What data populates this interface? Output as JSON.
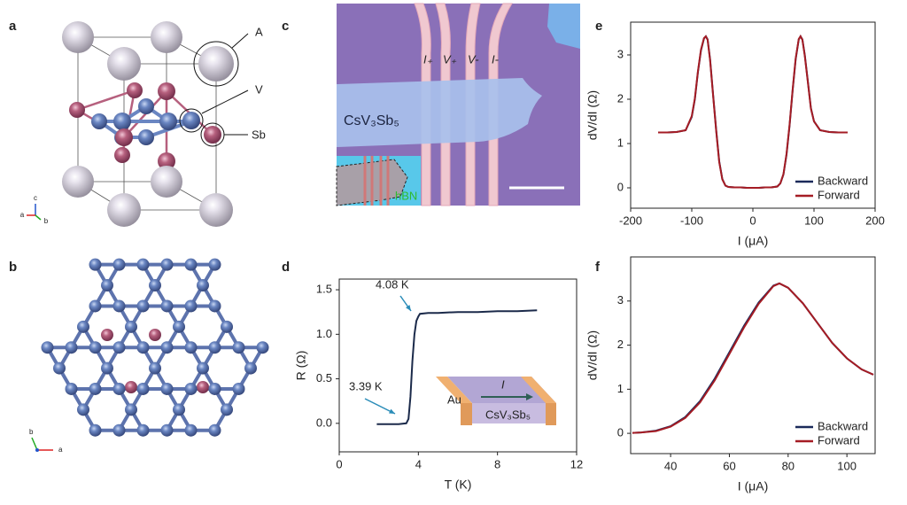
{
  "panel_labels": [
    "a",
    "b",
    "c",
    "d",
    "e",
    "f"
  ],
  "structure_a": {
    "labels": [
      "A",
      "V",
      "Sb"
    ],
    "axes": [
      "c",
      "a",
      "b"
    ]
  },
  "structure_b": {
    "axes": [
      "b",
      "a"
    ]
  },
  "micrograph_c": {
    "electrode_labels": [
      "I₊",
      "V₊",
      "V-",
      "I-"
    ],
    "flake_label": "CsV₃Sb₅",
    "inset_label": "hBN"
  },
  "chart_data": [
    {
      "type": "line",
      "xlabel": "T (K)",
      "ylabel": "R (Ω)",
      "xlim": [
        0,
        12
      ],
      "xticks": [
        0,
        4,
        8,
        12
      ],
      "ylim": [
        -0.32,
        1.62
      ],
      "yticks": [
        {
          "value": 0,
          "label": "0.0"
        },
        0.5,
        {
          "value": 1,
          "label": "1.0"
        },
        1.5
      ],
      "x": [
        1.9,
        2.5,
        3.0,
        3.39,
        3.5,
        3.6,
        3.7,
        3.8,
        3.9,
        4.0,
        4.08,
        4.5,
        5,
        6,
        7,
        8,
        9,
        10
      ],
      "series": [
        {
          "color": "#1b2a4a",
          "values": [
            -0.01,
            -0.01,
            -0.01,
            0.0,
            0.05,
            0.3,
            0.7,
            1.0,
            1.15,
            1.2,
            1.23,
            1.24,
            1.24,
            1.25,
            1.25,
            1.26,
            1.26,
            1.27
          ]
        }
      ],
      "annotations": [
        "4.08 K",
        "3.39 K"
      ],
      "inset_labels": [
        "Au",
        "I",
        "CsV₃Sb₅"
      ]
    },
    {
      "type": "line",
      "xlabel": "I (μA)",
      "ylabel": "dV/dI (Ω)",
      "xlim": [
        -200,
        200
      ],
      "xticks": [
        -200,
        -100,
        0,
        100,
        200
      ],
      "ylim": [
        -0.46,
        3.74
      ],
      "yticks": [
        0,
        1,
        2,
        3
      ],
      "legend": "lower right",
      "x": [
        -155,
        -140,
        -125,
        -110,
        -100,
        -95,
        -90,
        -85,
        -80,
        -77,
        -74,
        -70,
        -65,
        -60,
        -55,
        -50,
        -45,
        -40,
        -30,
        -20,
        -10,
        0,
        10,
        20,
        30,
        40,
        45,
        50,
        55,
        60,
        65,
        70,
        75,
        78,
        81,
        85,
        90,
        95,
        100,
        110,
        125,
        140,
        155
      ],
      "series": [
        {
          "name": "Backward",
          "color": "#1b2a5a",
          "values": [
            1.25,
            1.25,
            1.26,
            1.3,
            1.6,
            2.0,
            2.6,
            3.1,
            3.37,
            3.42,
            3.35,
            2.9,
            2.1,
            1.3,
            0.6,
            0.2,
            0.05,
            0.02,
            0.01,
            0.01,
            0.0,
            0.0,
            0.0,
            0.01,
            0.01,
            0.03,
            0.1,
            0.3,
            0.75,
            1.4,
            2.2,
            2.9,
            3.35,
            3.42,
            3.35,
            3.0,
            2.4,
            1.8,
            1.5,
            1.3,
            1.26,
            1.25,
            1.25
          ]
        },
        {
          "name": "Forward",
          "color": "#a51c24",
          "values": [
            1.25,
            1.25,
            1.26,
            1.3,
            1.62,
            2.02,
            2.62,
            3.12,
            3.38,
            3.42,
            3.34,
            2.88,
            2.08,
            1.28,
            0.58,
            0.19,
            0.05,
            0.02,
            0.01,
            0.01,
            0.0,
            0.0,
            0.0,
            0.01,
            0.01,
            0.03,
            0.1,
            0.31,
            0.77,
            1.42,
            2.22,
            2.92,
            3.36,
            3.42,
            3.34,
            2.98,
            2.38,
            1.79,
            1.5,
            1.3,
            1.26,
            1.25,
            1.25
          ]
        }
      ]
    },
    {
      "type": "line",
      "xlabel": "I (μA)",
      "ylabel": "dV/dI (Ω)",
      "xlim": [
        26.4,
        109.6
      ],
      "xticks": [
        40,
        60,
        80,
        100
      ],
      "ylim": [
        -0.46,
        4.0
      ],
      "yticks": [
        0,
        1,
        2,
        3
      ],
      "legend": "lower right",
      "x": [
        27,
        30,
        35,
        40,
        45,
        50,
        55,
        60,
        65,
        70,
        75,
        77,
        80,
        85,
        90,
        95,
        100,
        105,
        109
      ],
      "series": [
        {
          "name": "Backward",
          "color": "#1b2a5a",
          "values": [
            0.01,
            0.02,
            0.06,
            0.16,
            0.37,
            0.73,
            1.24,
            1.84,
            2.44,
            2.97,
            3.35,
            3.4,
            3.3,
            2.95,
            2.5,
            2.05,
            1.7,
            1.45,
            1.33
          ]
        },
        {
          "name": "Forward",
          "color": "#a51c24",
          "values": [
            0.01,
            0.02,
            0.05,
            0.15,
            0.35,
            0.7,
            1.2,
            1.8,
            2.4,
            2.94,
            3.34,
            3.4,
            3.3,
            2.95,
            2.5,
            2.05,
            1.7,
            1.45,
            1.33
          ]
        }
      ]
    }
  ]
}
